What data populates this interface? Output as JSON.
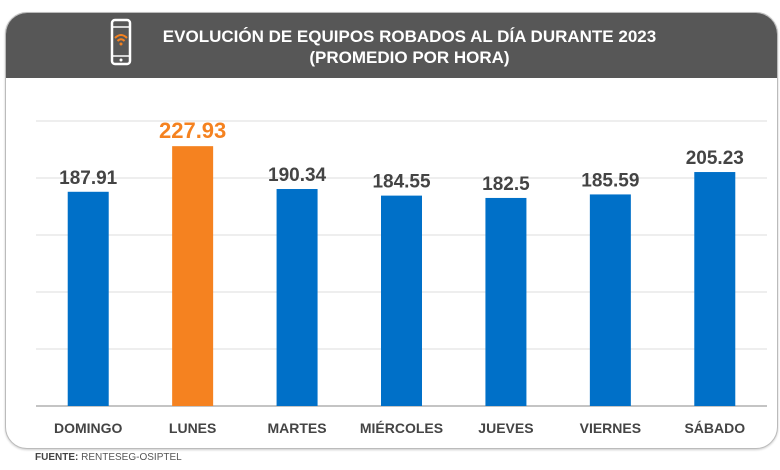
{
  "header": {
    "title_line1": "EVOLUCIÓN DE EQUIPOS ROBADOS AL DÍA DURANTE 2023",
    "title_line2": "(PROMEDIO POR HORA)",
    "icon": "smartphone-wifi-icon"
  },
  "source": {
    "label": "FUENTE:",
    "value": "RENTESEG-OSIPTEL"
  },
  "chart_data": {
    "type": "bar",
    "title": "EVOLUCIÓN DE EQUIPOS ROBADOS AL DÍA DURANTE 2023 (PROMEDIO POR HORA)",
    "categories": [
      "DOMINGO",
      "LUNES",
      "MARTES",
      "MIÉRCOLES",
      "JUEVES",
      "VIERNES",
      "SÁBADO"
    ],
    "values": [
      187.91,
      227.93,
      190.34,
      184.55,
      182.5,
      185.59,
      205.23
    ],
    "value_labels": [
      "187.91",
      "227.93",
      "190.34",
      "184.55",
      "182.5",
      "185.59",
      "205.23"
    ],
    "highlight_index": 1,
    "ylim": [
      0,
      250
    ],
    "grid": true,
    "grid_step": 50,
    "colors": {
      "bar": "#0070C8",
      "highlight": "#F58220",
      "label": "#444444",
      "header": "#575757"
    }
  }
}
